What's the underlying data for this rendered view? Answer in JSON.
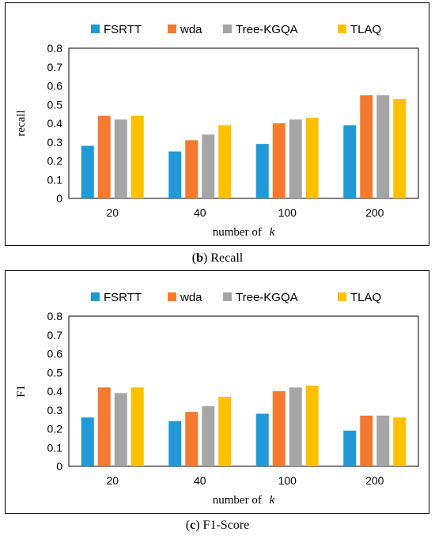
{
  "chart_data": [
    {
      "type": "bar",
      "caption_bold": "b",
      "caption_rest": "Recall",
      "categories": [
        "20",
        "40",
        "100",
        "200"
      ],
      "series": [
        {
          "name": "FSRTT",
          "color": "#1f9ad6",
          "values": [
            0.28,
            0.25,
            0.29,
            0.39
          ]
        },
        {
          "name": "wda",
          "color": "#f47a30",
          "values": [
            0.44,
            0.31,
            0.4,
            0.55
          ]
        },
        {
          "name": "Tree-KGQA",
          "color": "#a5a5a5",
          "values": [
            0.42,
            0.34,
            0.42,
            0.55
          ]
        },
        {
          "name": "TLAQ",
          "color": "#ffc000",
          "values": [
            0.44,
            0.39,
            0.43,
            0.53
          ]
        }
      ],
      "xlabel": "number of",
      "xlabel_var": "k",
      "ylabel": "recall",
      "ylim": [
        0,
        0.8
      ],
      "yticks": [
        "0",
        "0.1",
        "0.2",
        "0.3",
        "0.4",
        "0.5",
        "0.6",
        "0.7",
        "0.8"
      ],
      "legend": "top",
      "grid": false
    },
    {
      "type": "bar",
      "caption_bold": "c",
      "caption_rest": "F1-Score",
      "categories": [
        "20",
        "40",
        "100",
        "200"
      ],
      "series": [
        {
          "name": "FSRTT",
          "color": "#1f9ad6",
          "values": [
            0.26,
            0.24,
            0.28,
            0.19
          ]
        },
        {
          "name": "wda",
          "color": "#f47a30",
          "values": [
            0.42,
            0.29,
            0.4,
            0.27
          ]
        },
        {
          "name": "Tree-KGQA",
          "color": "#a5a5a5",
          "values": [
            0.39,
            0.32,
            0.42,
            0.27
          ]
        },
        {
          "name": "TLAQ",
          "color": "#ffc000",
          "values": [
            0.42,
            0.37,
            0.43,
            0.26
          ]
        }
      ],
      "xlabel": "number of",
      "xlabel_var": "k",
      "ylabel": "F1",
      "ylim": [
        0,
        0.8
      ],
      "yticks": [
        "0",
        "0.1",
        "0.2",
        "0.3",
        "0.4",
        "0.5",
        "0.6",
        "0.7",
        "0.8"
      ],
      "legend": "top",
      "grid": false
    }
  ]
}
